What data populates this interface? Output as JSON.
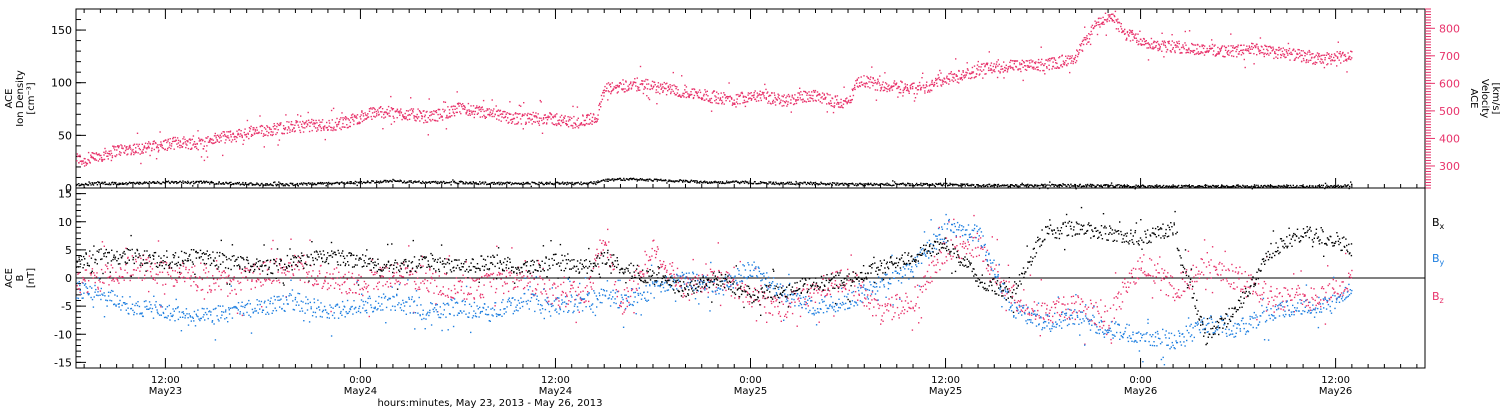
{
  "colors": {
    "axis": "#000000",
    "velocity": "#e8336b",
    "density": "#000000",
    "bx": "#000000",
    "by": "#1f7fe0",
    "bz": "#e8336b"
  },
  "chart_data": [
    {
      "type": "scatter",
      "panel": "plasma",
      "ylabel_lines": [
        "ACE",
        "Ion Density",
        "[cm⁻³]"
      ],
      "y2label_lines": [
        "ACE",
        "Velocity",
        "[km/s]"
      ],
      "ylim": [
        0,
        170
      ],
      "yticks": [
        0,
        50,
        100,
        150
      ],
      "y2lim": [
        220,
        870
      ],
      "y2ticks": [
        300,
        400,
        500,
        600,
        700,
        800
      ],
      "x_hours_since_may23_00": true,
      "xlim": [
        6.5,
        89.5
      ],
      "series": [
        {
          "name": "",
          "axis": "right",
          "color_key": "velocity",
          "x": [
            6.5,
            7,
            8,
            9,
            10,
            11,
            12,
            13,
            14,
            15,
            16,
            17,
            18,
            19,
            20,
            21,
            22,
            23,
            24,
            25,
            26,
            27,
            28,
            29,
            30,
            31,
            32,
            33,
            34,
            35,
            36,
            37,
            38,
            38.5,
            39,
            40,
            41,
            42,
            43,
            44,
            45,
            46,
            47,
            48,
            49,
            50,
            51,
            52,
            53,
            54,
            54.5,
            55,
            56,
            57,
            58,
            59,
            60,
            61,
            62,
            63,
            64,
            65,
            66,
            67,
            68,
            69,
            70,
            70.5,
            71,
            72,
            73,
            74,
            75,
            76,
            77,
            78,
            79,
            80,
            81,
            82,
            83,
            84,
            85
          ],
          "y": [
            330,
            320,
            340,
            360,
            365,
            370,
            380,
            390,
            380,
            400,
            410,
            420,
            430,
            440,
            445,
            450,
            450,
            460,
            480,
            500,
            495,
            490,
            480,
            490,
            510,
            500,
            490,
            480,
            470,
            480,
            470,
            460,
            470,
            480,
            580,
            590,
            600,
            590,
            580,
            570,
            560,
            550,
            545,
            560,
            550,
            540,
            550,
            560,
            540,
            530,
            600,
            610,
            595,
            590,
            585,
            590,
            620,
            630,
            650,
            660,
            665,
            665,
            670,
            680,
            700,
            800,
            850,
            820,
            780,
            760,
            740,
            735,
            730,
            725,
            720,
            720,
            730,
            715,
            710,
            700,
            690,
            695,
            700
          ]
        },
        {
          "name": "",
          "axis": "left",
          "color_key": "density",
          "x": [
            6.5,
            8,
            10,
            12,
            14,
            16,
            18,
            20,
            22,
            24,
            26,
            28,
            30,
            32,
            34,
            36,
            38,
            39,
            40,
            42,
            44,
            46,
            48,
            50,
            52,
            54,
            56,
            58,
            60,
            62,
            64,
            66,
            68,
            70,
            72,
            74,
            76,
            78,
            80,
            82,
            84,
            85
          ],
          "y": [
            4,
            5,
            5,
            6,
            6,
            5,
            4,
            4,
            5,
            6,
            7,
            6,
            6,
            5,
            5,
            5,
            5,
            8,
            9,
            8,
            7,
            6,
            6,
            5,
            5,
            4,
            4,
            4,
            4,
            3,
            3,
            3,
            3,
            3,
            2,
            2,
            2,
            2,
            2,
            2,
            2,
            3
          ]
        }
      ]
    },
    {
      "type": "scatter",
      "panel": "magnetic",
      "ylabel_lines": [
        "ACE",
        "B",
        "[nT]"
      ],
      "ylim": [
        -16,
        16
      ],
      "yticks": [
        -15,
        -10,
        -5,
        0,
        5,
        10,
        15
      ],
      "xlim": [
        6.5,
        89.5
      ],
      "xticks": [
        {
          "x": 12,
          "top": "12:00",
          "bottom": "May23"
        },
        {
          "x": 24,
          "top": "0:00",
          "bottom": "May24"
        },
        {
          "x": 36,
          "top": "12:00",
          "bottom": "May24"
        },
        {
          "x": 48,
          "top": "0:00",
          "bottom": "May25"
        },
        {
          "x": 60,
          "top": "12:00",
          "bottom": "May25"
        },
        {
          "x": 72,
          "top": "0:00",
          "bottom": "May26"
        },
        {
          "x": 84,
          "top": "12:00",
          "bottom": "May26"
        }
      ],
      "xlabel": "hours:minutes, May 23, 2013 - May 26, 2013",
      "series": [
        {
          "name": "B",
          "sub": "x",
          "color_key": "bx",
          "x": [
            6.5,
            8,
            10,
            12,
            14,
            16,
            18,
            20,
            22,
            24,
            26,
            28,
            30,
            32,
            34,
            36,
            38,
            39,
            40,
            42,
            44,
            46,
            48,
            50,
            52,
            54,
            56,
            58,
            60,
            62,
            64,
            66,
            68,
            70,
            72,
            74,
            76,
            78,
            80,
            82,
            84,
            85
          ],
          "y": [
            3,
            4,
            4,
            3,
            4,
            3,
            2,
            3,
            4,
            3,
            2,
            3,
            2,
            3,
            2,
            3,
            2,
            4,
            2,
            0,
            -2,
            0,
            -3,
            -2,
            -1,
            0,
            2,
            4,
            6,
            0,
            -3,
            8,
            9,
            8,
            7,
            9,
            -11,
            -5,
            5,
            8,
            7,
            5
          ]
        },
        {
          "name": "B",
          "sub": "y",
          "color_key": "by",
          "x": [
            6.5,
            8,
            10,
            12,
            14,
            16,
            18,
            20,
            22,
            24,
            26,
            28,
            30,
            32,
            34,
            36,
            38,
            39,
            40,
            42,
            44,
            46,
            48,
            50,
            52,
            54,
            56,
            58,
            60,
            62,
            64,
            66,
            68,
            70,
            72,
            74,
            76,
            78,
            80,
            82,
            84,
            85
          ],
          "y": [
            -2,
            -3,
            -5,
            -6,
            -7,
            -6,
            -5,
            -4,
            -6,
            -5,
            -4,
            -6,
            -5,
            -6,
            -4,
            -5,
            -4,
            -3,
            -4,
            -2,
            0,
            -2,
            2,
            -3,
            -5,
            -4,
            -1,
            2,
            9,
            8,
            -5,
            -8,
            -7,
            -9,
            -10,
            -11,
            -8,
            -9,
            -6,
            -5,
            -4,
            -2
          ]
        },
        {
          "name": "B",
          "sub": "z",
          "color_key": "bz",
          "x": [
            6.5,
            8,
            10,
            12,
            14,
            16,
            18,
            20,
            22,
            24,
            26,
            28,
            30,
            32,
            34,
            36,
            38,
            39,
            40,
            42,
            44,
            46,
            48,
            50,
            52,
            54,
            56,
            58,
            60,
            62,
            64,
            66,
            68,
            70,
            72,
            74,
            76,
            78,
            80,
            82,
            84,
            85
          ],
          "y": [
            -1,
            0,
            2,
            1,
            0,
            -1,
            1,
            2,
            0,
            -1,
            1,
            0,
            -2,
            -1,
            0,
            -3,
            -2,
            8,
            -5,
            5,
            -2,
            0,
            -3,
            -5,
            -2,
            0,
            -6,
            -4,
            5,
            6,
            -3,
            -6,
            -5,
            -7,
            3,
            -2,
            2,
            0,
            -3,
            -4,
            -2,
            0
          ]
        }
      ]
    }
  ]
}
